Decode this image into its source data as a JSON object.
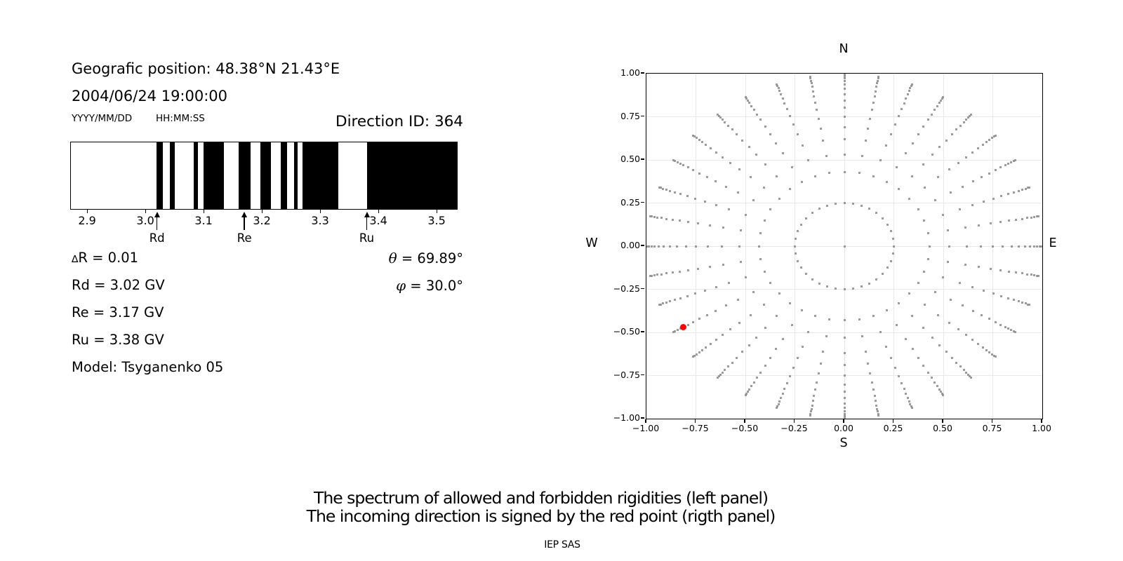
{
  "info": {
    "geo_position": "Geografic position: 48.38°N 21.43°E",
    "datetime": "2004/06/24 19:00:00",
    "date_format": "YYYY/MM/DD",
    "time_format": "HH:MM:SS",
    "direction_id": "Direction ID: 364",
    "delta_symbol": "∆",
    "delta_r_rest": "R = 0.01",
    "rd_value": "Rd = 3.02 GV",
    "re_value": "Re = 3.17 GV",
    "ru_value": "Ru = 3.38 GV",
    "model": "Model: Tsyganenko 05",
    "theta_symbol": "θ",
    "theta_rest": " = 69.89°",
    "phi_symbol": "φ",
    "phi_rest": " = 30.0°"
  },
  "captions": {
    "line1": "The spectrum of allowed and forbidden rigidities (left panel)",
    "line2": "The incoming direction is signed by the red point (rigth panel)",
    "credit": "IEP SAS"
  },
  "chart_data": [
    {
      "type": "bar",
      "panel": "left",
      "description_from_caption": "spectrum of allowed and forbidden rigidities",
      "x_unit": "GV",
      "xlim": [
        2.871,
        3.536
      ],
      "x_ticks": [
        2.9,
        3.0,
        3.1,
        3.2,
        3.3,
        3.4,
        3.5
      ],
      "x_tick_labels": [
        "2.9",
        "3.0",
        "3.1",
        "3.2",
        "3.3",
        "3.4",
        "3.5"
      ],
      "delta_r_gv": 0.01,
      "black_segments_gv": [
        [
          3.019,
          3.029
        ],
        [
          3.041,
          3.05
        ],
        [
          3.082,
          3.09
        ],
        [
          3.099,
          3.135
        ],
        [
          3.16,
          3.18
        ],
        [
          3.197,
          3.216
        ],
        [
          3.232,
          3.244
        ],
        [
          3.255,
          3.262
        ],
        [
          3.27,
          3.332
        ],
        [
          3.381,
          3.536
        ]
      ],
      "markers": [
        {
          "label": "Rd",
          "value_gv": 3.02
        },
        {
          "label": "Re",
          "value_gv": 3.17
        },
        {
          "label": "Ru",
          "value_gv": 3.38
        }
      ],
      "bar_color": "#000000",
      "background_color": "#ffffff"
    },
    {
      "type": "scatter",
      "panel": "right",
      "description_from_caption": "incoming direction grid, red point = direction ID 364",
      "xlim": [
        -1.0,
        1.0
      ],
      "ylim": [
        -1.0,
        1.0
      ],
      "x_tick_labels": [
        "−1.00",
        "−0.75",
        "−0.50",
        "−0.25",
        "0.00",
        "0.25",
        "0.50",
        "0.75",
        "1.00"
      ],
      "y_tick_labels": [
        "1.00",
        "0.75",
        "0.50",
        "0.25",
        "0.00",
        "−0.25",
        "−0.50",
        "−0.75",
        "−1.00"
      ],
      "tick_step": 0.25,
      "grid": true,
      "compass": {
        "top": "N",
        "bottom": "S",
        "left": "W",
        "right": "E"
      },
      "dot_color": "#8a8a8a",
      "grid_dots": {
        "azimuth_step_deg": 10,
        "azimuth_count": 36,
        "ring_radii": [
          0.25,
          0.43,
          0.53,
          0.62,
          0.69,
          0.75,
          0.801,
          0.845,
          0.882,
          0.912,
          0.938,
          0.958,
          0.974,
          0.987,
          0.996
        ],
        "center_dot": [
          0,
          0
        ]
      },
      "red_point": {
        "x": -0.814,
        "y": -0.47,
        "color": "#fe0000",
        "theta_deg": 69.89,
        "phi_deg": 30.0,
        "direction_id": 364
      }
    }
  ]
}
